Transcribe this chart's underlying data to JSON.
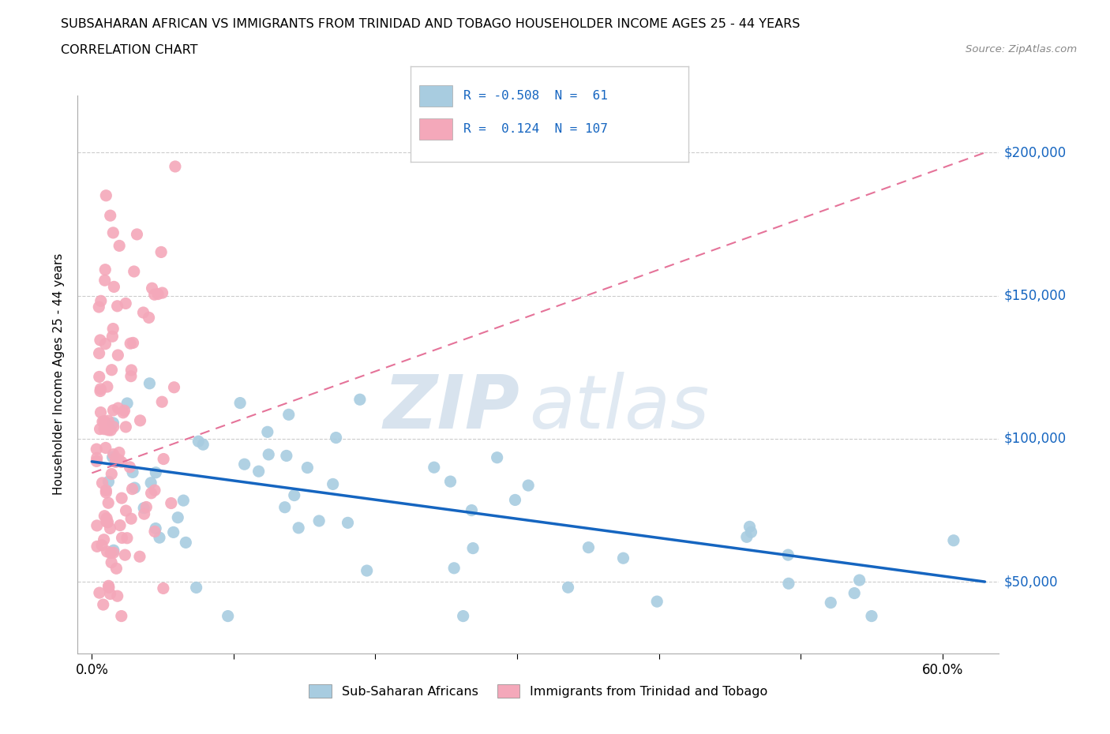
{
  "title": "SUBSAHARAN AFRICAN VS IMMIGRANTS FROM TRINIDAD AND TOBAGO HOUSEHOLDER INCOME AGES 25 - 44 YEARS",
  "subtitle": "CORRELATION CHART",
  "source": "Source: ZipAtlas.com",
  "ylabel": "Householder Income Ages 25 - 44 years",
  "ytick_labels": [
    "$50,000",
    "$100,000",
    "$150,000",
    "$200,000"
  ],
  "ytick_vals": [
    50000,
    100000,
    150000,
    200000
  ],
  "xlim": [
    -0.01,
    0.64
  ],
  "ylim": [
    25000,
    220000
  ],
  "watermark_zip": "ZIP",
  "watermark_atlas": "atlas",
  "legend_blue_R": "-0.508",
  "legend_blue_N": "61",
  "legend_pink_R": "0.124",
  "legend_pink_N": "107",
  "blue_color": "#a8cce0",
  "pink_color": "#f4a8ba",
  "trendline_blue_color": "#1565c0",
  "trendline_pink_color": "#e57399",
  "label_blue": "Sub-Saharan Africans",
  "label_pink": "Immigrants from Trinidad and Tobago",
  "blue_trendline_x0": 0.0,
  "blue_trendline_y0": 92000,
  "blue_trendline_x1": 0.63,
  "blue_trendline_y1": 50000,
  "pink_trendline_x0": 0.0,
  "pink_trendline_y0": 88000,
  "pink_trendline_x1": 0.63,
  "pink_trendline_y1": 200000
}
